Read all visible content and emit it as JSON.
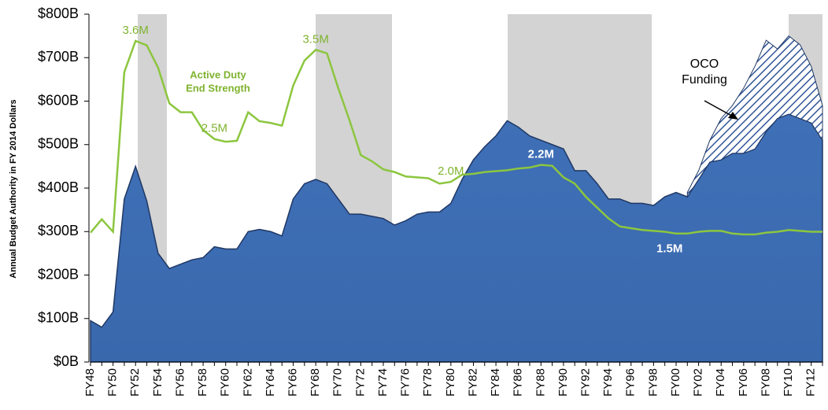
{
  "chart_data": {
    "type": "stacked_area_line",
    "y_label": "Annual Budget Authority in FY 2014 Dollars",
    "categories": [
      "FY48",
      null,
      "FY50",
      null,
      "FY52",
      null,
      "FY54",
      null,
      "FY56",
      null,
      "FY58",
      null,
      "FY60",
      null,
      "FY62",
      null,
      "FY64",
      null,
      "FY66",
      null,
      "FY68",
      null,
      "FY70",
      null,
      "FY72",
      null,
      "FY74",
      null,
      "FY76",
      null,
      "FY78",
      null,
      "FY80",
      null,
      "FY82",
      null,
      "FY84",
      null,
      "FY86",
      null,
      "FY88",
      null,
      "FY90",
      null,
      "FY92",
      null,
      "FY94",
      null,
      "FY96",
      null,
      "FY98",
      null,
      "FY00",
      null,
      "FY02",
      null,
      "FY04",
      null,
      "FY06",
      null,
      "FY08",
      null,
      "FY10",
      null,
      "FY12",
      null
    ],
    "ylim": [
      0,
      800
    ],
    "yticks": [
      {
        "value": 0,
        "label": "$0B"
      },
      {
        "value": 100,
        "label": "$100B"
      },
      {
        "value": 200,
        "label": "$200B"
      },
      {
        "value": 300,
        "label": "$300B"
      },
      {
        "value": 400,
        "label": "$400B"
      },
      {
        "value": 500,
        "label": "$500B"
      },
      {
        "value": 600,
        "label": "$600B"
      },
      {
        "value": 700,
        "label": "$700B"
      },
      {
        "value": 800,
        "label": "$800B"
      }
    ],
    "y2lim": [
      0,
      3.9
    ],
    "series": [
      {
        "kind": "area",
        "color": "#3d6db3",
        "values": [
          95,
          80,
          115,
          375,
          450,
          370,
          250,
          215,
          225,
          235,
          240,
          265,
          260,
          260,
          300,
          305,
          300,
          290,
          375,
          410,
          420,
          410,
          375,
          340,
          340,
          335,
          330,
          315,
          325,
          340,
          345,
          345,
          365,
          420,
          465,
          495,
          520,
          555,
          540,
          520,
          510,
          500,
          490,
          440,
          440,
          410,
          375,
          375,
          365,
          365,
          360,
          380,
          390,
          380,
          420,
          460,
          465,
          480,
          480,
          490,
          530,
          560,
          570,
          560,
          550,
          510
        ]
      },
      {
        "kind": "hatched",
        "color": "#2f5597",
        "values": [
          null,
          null,
          null,
          null,
          null,
          null,
          null,
          null,
          null,
          null,
          null,
          null,
          null,
          null,
          null,
          null,
          null,
          null,
          null,
          null,
          null,
          null,
          null,
          null,
          null,
          null,
          null,
          null,
          null,
          null,
          null,
          null,
          null,
          null,
          null,
          null,
          null,
          null,
          null,
          null,
          null,
          null,
          null,
          null,
          null,
          null,
          null,
          null,
          null,
          null,
          null,
          null,
          null,
          10,
          20,
          50,
          95,
          110,
          150,
          190,
          210,
          160,
          180,
          170,
          130,
          80
        ]
      },
      {
        "kind": "line",
        "axis": "y2",
        "color": "#8cc63f",
        "values": [
          1.45,
          1.6,
          1.46,
          3.25,
          3.6,
          3.55,
          3.3,
          2.9,
          2.8,
          2.8,
          2.6,
          2.5,
          2.47,
          2.48,
          2.8,
          2.7,
          2.68,
          2.65,
          3.1,
          3.38,
          3.5,
          3.46,
          3.07,
          2.71,
          2.32,
          2.25,
          2.16,
          2.13,
          2.08,
          2.07,
          2.06,
          2.0,
          2.02,
          2.1,
          2.11,
          2.13,
          2.14,
          2.15,
          2.17,
          2.18,
          2.21,
          2.2,
          2.07,
          2.0,
          1.85,
          1.73,
          1.61,
          1.52,
          1.5,
          1.48,
          1.47,
          1.46,
          1.44,
          1.44,
          1.46,
          1.47,
          1.47,
          1.44,
          1.43,
          1.43,
          1.45,
          1.46,
          1.48,
          1.47,
          1.46,
          1.46
        ],
        "value_labels": [
          null,
          null,
          null,
          null,
          "3.6M",
          null,
          null,
          null,
          null,
          null,
          null,
          "2.5M",
          null,
          null,
          null,
          null,
          null,
          null,
          null,
          null,
          "3.5M",
          null,
          null,
          null,
          null,
          null,
          null,
          null,
          null,
          null,
          null,
          null,
          "2.0M",
          null,
          null,
          null,
          null,
          null,
          null,
          null,
          "2.2M",
          null,
          null,
          null,
          null,
          null,
          null,
          null,
          null,
          null,
          null,
          "1.5M",
          null,
          null,
          null,
          null,
          null,
          null,
          null,
          null,
          null,
          null,
          null,
          null,
          null,
          null
        ]
      }
    ],
    "annotations": [
      {
        "lines": [
          "Active Duty",
          "End Strength"
        ]
      },
      {
        "lines": [
          "OCO",
          "Funding"
        ]
      }
    ]
  }
}
